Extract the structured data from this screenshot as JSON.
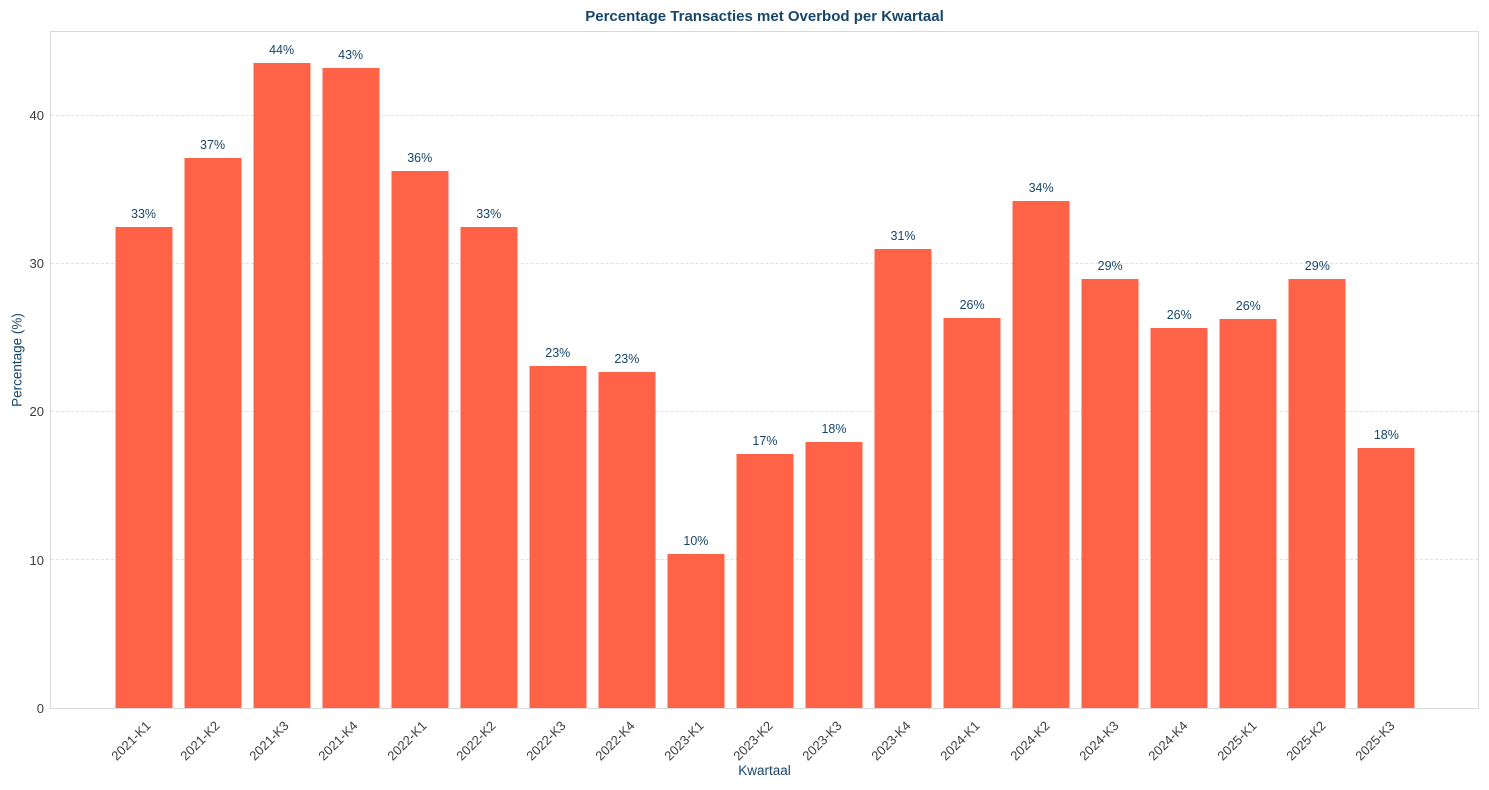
{
  "chart_data": {
    "type": "bar",
    "title": "Percentage Transacties met Overbod per Kwartaal",
    "xlabel": "Kwartaal",
    "ylabel": "Percentage (%)",
    "categories": [
      "2021-K1",
      "2021-K2",
      "2021-K3",
      "2021-K4",
      "2022-K1",
      "2022-K2",
      "2022-K3",
      "2022-K4",
      "2023-K1",
      "2023-K2",
      "2023-K3",
      "2023-K4",
      "2024-K1",
      "2024-K2",
      "2024-K3",
      "2024-K4",
      "2025-K1",
      "2025-K2",
      "2025-K3"
    ],
    "values": [
      32.5,
      37.2,
      43.6,
      43.3,
      36.3,
      32.5,
      23.1,
      22.7,
      10.4,
      17.2,
      18.0,
      31.0,
      26.4,
      34.3,
      29.0,
      25.7,
      26.3,
      29.0,
      17.6
    ],
    "bar_labels": [
      "33%",
      "37%",
      "44%",
      "43%",
      "36%",
      "33%",
      "23%",
      "23%",
      "10%",
      "17%",
      "18%",
      "31%",
      "26%",
      "34%",
      "29%",
      "26%",
      "26%",
      "29%",
      "18%"
    ],
    "yticks": [
      0,
      10,
      20,
      30,
      40
    ],
    "ylim": [
      0,
      45.7
    ],
    "grid": "horizontal-dashed",
    "legend": "none",
    "colors": {
      "bar": "#FF6347",
      "title": "#17466B",
      "axis_label": "#17466B",
      "bar_label": "#17466B",
      "tick": "#3C3C3C",
      "grid": "#E2E2E2",
      "spine": "#D9D9D9",
      "background": "#FFFFFF"
    }
  }
}
